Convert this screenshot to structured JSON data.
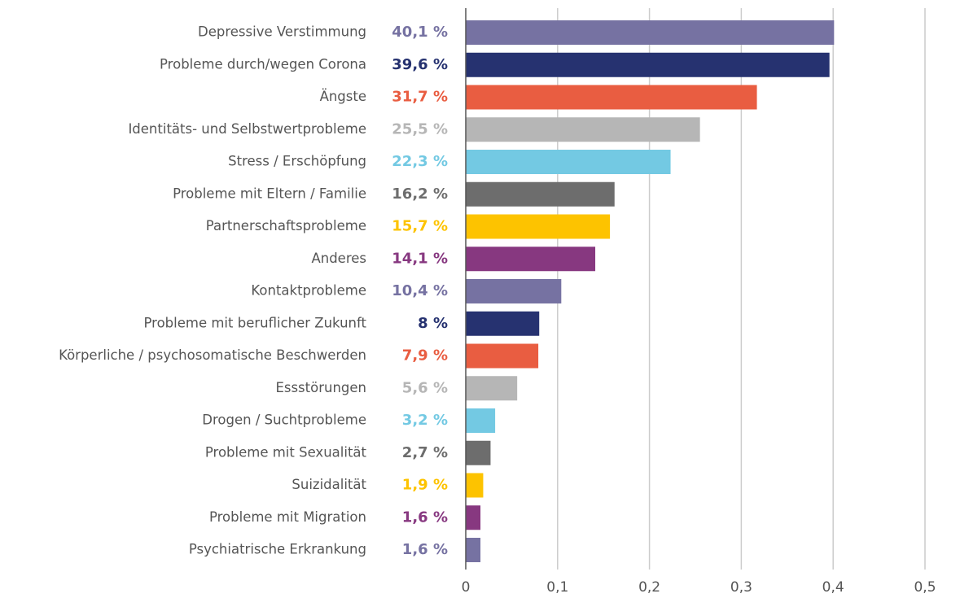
{
  "chart_data": {
    "type": "hbar",
    "categories": [
      "Depressive Verstimmung",
      "Probleme durch/wegen Corona",
      "Ängste",
      "Identitäts- und Selbstwertprobleme",
      "Stress / Erschöpfung",
      "Probleme mit Eltern / Familie",
      "Partnerschaftsprobleme",
      "Anderes",
      "Kontaktprobleme",
      "Probleme mit beruflicher Zukunft",
      "Körperliche / psychosomatische Beschwerden",
      "Essstörungen",
      "Drogen / Suchtprobleme",
      "Probleme mit Sexualität",
      "Suizidalität",
      "Probleme mit Migration",
      "Psychiatrische Erkrankung"
    ],
    "values": [
      0.401,
      0.396,
      0.317,
      0.255,
      0.223,
      0.162,
      0.157,
      0.141,
      0.104,
      0.08,
      0.079,
      0.056,
      0.032,
      0.027,
      0.019,
      0.016,
      0.016
    ],
    "value_labels": [
      "40,1 %",
      "39,6 %",
      "31,7 %",
      "25,5 %",
      "22,3 %",
      "16,2 %",
      "15,7 %",
      "14,1 %",
      "10,4 %",
      "8 %",
      "7,9 %",
      "5,6 %",
      "3,2 %",
      "2,7 %",
      "1,9 %",
      "1,6 %",
      "1,6 %"
    ],
    "colors": [
      "#7672a2",
      "#263270",
      "#e95d41",
      "#b6b6b6",
      "#73c9e3",
      "#6d6d6d",
      "#fdc300",
      "#873880",
      "#7672a2",
      "#263270",
      "#e95d41",
      "#b6b6b6",
      "#73c9e3",
      "#6d6d6d",
      "#fdc300",
      "#873880",
      "#7672a2"
    ],
    "xlim": [
      0,
      0.5
    ],
    "xticks": [
      0,
      {
        "value": 0.1,
        "label": "0,1"
      },
      {
        "value": 0.2,
        "label": "0,2"
      },
      {
        "value": 0.3,
        "label": "0,3"
      },
      {
        "value": 0.4,
        "label": "0,4"
      },
      {
        "value": 0.5,
        "label": "0,5"
      }
    ],
    "grid": true
  }
}
